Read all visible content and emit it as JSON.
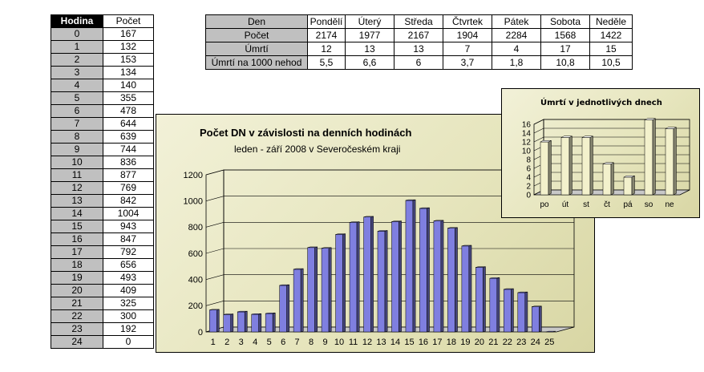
{
  "hours_table": {
    "header": [
      "Hodina",
      "Počet"
    ],
    "rows": [
      [
        "0",
        "167"
      ],
      [
        "1",
        "132"
      ],
      [
        "2",
        "153"
      ],
      [
        "3",
        "134"
      ],
      [
        "4",
        "140"
      ],
      [
        "5",
        "355"
      ],
      [
        "6",
        "478"
      ],
      [
        "7",
        "644"
      ],
      [
        "8",
        "639"
      ],
      [
        "9",
        "744"
      ],
      [
        "10",
        "836"
      ],
      [
        "11",
        "877"
      ],
      [
        "12",
        "769"
      ],
      [
        "13",
        "842"
      ],
      [
        "14",
        "1004"
      ],
      [
        "15",
        "943"
      ],
      [
        "16",
        "847"
      ],
      [
        "17",
        "792"
      ],
      [
        "18",
        "656"
      ],
      [
        "19",
        "493"
      ],
      [
        "20",
        "409"
      ],
      [
        "21",
        "325"
      ],
      [
        "22",
        "300"
      ],
      [
        "23",
        "192"
      ],
      [
        "24",
        "0"
      ]
    ]
  },
  "days_table": {
    "header": [
      "Den",
      "Pondělí",
      "Úterý",
      "Středa",
      "Čtvrtek",
      "Pátek",
      "Sobota",
      "Neděle"
    ],
    "rows": [
      [
        "Počet",
        "2174",
        "1977",
        "2167",
        "1904",
        "2284",
        "1568",
        "1422"
      ],
      [
        "Úmrtí",
        "12",
        "13",
        "13",
        "7",
        "4",
        "17",
        "15"
      ],
      [
        "Úmrtí na 1000 nehod",
        "5,5",
        "6,6",
        "6",
        "3,7",
        "1,8",
        "10,8",
        "10,5"
      ]
    ]
  },
  "chart_data": [
    {
      "type": "bar",
      "title": "Počet DN v závislosti na denních hodinách",
      "subtitle": "leden - září 2008 v Severočeském kraji",
      "categories": [
        "1",
        "2",
        "3",
        "4",
        "5",
        "6",
        "7",
        "8",
        "9",
        "10",
        "11",
        "12",
        "13",
        "14",
        "15",
        "16",
        "17",
        "18",
        "19",
        "20",
        "21",
        "22",
        "23",
        "24",
        "25"
      ],
      "values": [
        167,
        132,
        153,
        134,
        140,
        355,
        478,
        644,
        639,
        744,
        836,
        877,
        769,
        842,
        1004,
        943,
        847,
        792,
        656,
        493,
        409,
        325,
        300,
        192,
        0
      ],
      "y_ticks": [
        "0",
        "200",
        "400",
        "600",
        "800",
        "1000",
        "1200"
      ],
      "ylim": [
        0,
        1200
      ],
      "color": "#7f7fe0",
      "grid": true
    },
    {
      "type": "bar",
      "title": "Úmrtí v jednotlivých dnech",
      "categories": [
        "po",
        "út",
        "st",
        "čt",
        "pá",
        "so",
        "ne"
      ],
      "values": [
        12,
        13,
        13,
        7,
        4,
        17,
        15
      ],
      "y_ticks": [
        "0",
        "2",
        "4",
        "6",
        "8",
        "10",
        "12",
        "14",
        "16"
      ],
      "ylim": [
        0,
        16
      ],
      "color": "#f3f1cc",
      "grid": true
    }
  ]
}
